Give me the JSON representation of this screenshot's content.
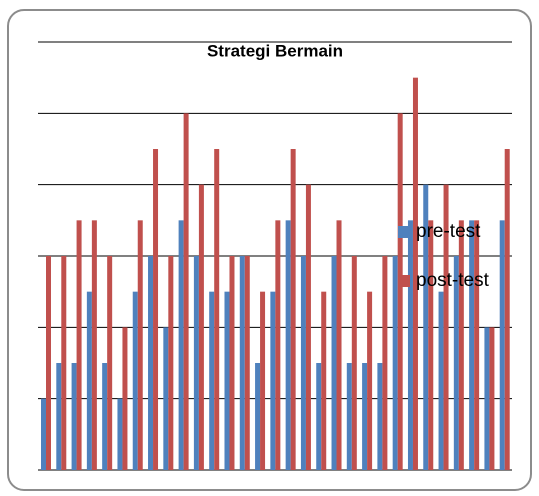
{
  "chart_data": {
    "type": "bar",
    "title": "Strategi Bermain",
    "categories": [
      null,
      null,
      null,
      null,
      null,
      null,
      null,
      null,
      null,
      null,
      null,
      null,
      null,
      null,
      null,
      null,
      null,
      null,
      null,
      null,
      null,
      null,
      null,
      null,
      null,
      null,
      null,
      null,
      null,
      null,
      null
    ],
    "series": [
      {
        "name": "pre-test",
        "color": "#4f81bd",
        "values": [
          1,
          1.5,
          1.5,
          2.5,
          1.5,
          1,
          2.5,
          3,
          2,
          3.5,
          3,
          2.5,
          2.5,
          3,
          1.5,
          2.5,
          3.5,
          3,
          1.5,
          3,
          1.5,
          1.5,
          1.5,
          3,
          3.5,
          4,
          2.5,
          3,
          3.5,
          2,
          3.5
        ]
      },
      {
        "name": "post-test",
        "color": "#c0504d",
        "values": [
          3,
          3,
          3.5,
          3.5,
          3,
          2,
          3.5,
          4.5,
          3,
          5,
          4,
          4.5,
          3,
          3,
          2.5,
          3.5,
          4.5,
          4,
          2.5,
          3.5,
          3,
          2.5,
          3,
          5,
          5.5,
          3.5,
          4,
          3.5,
          3.5,
          2,
          4.5
        ]
      }
    ],
    "ylim": [
      0,
      6
    ],
    "yticks": [
      0,
      1,
      2,
      3,
      4,
      5,
      6
    ],
    "grid": true,
    "tick_labels": false,
    "legend": "right"
  }
}
